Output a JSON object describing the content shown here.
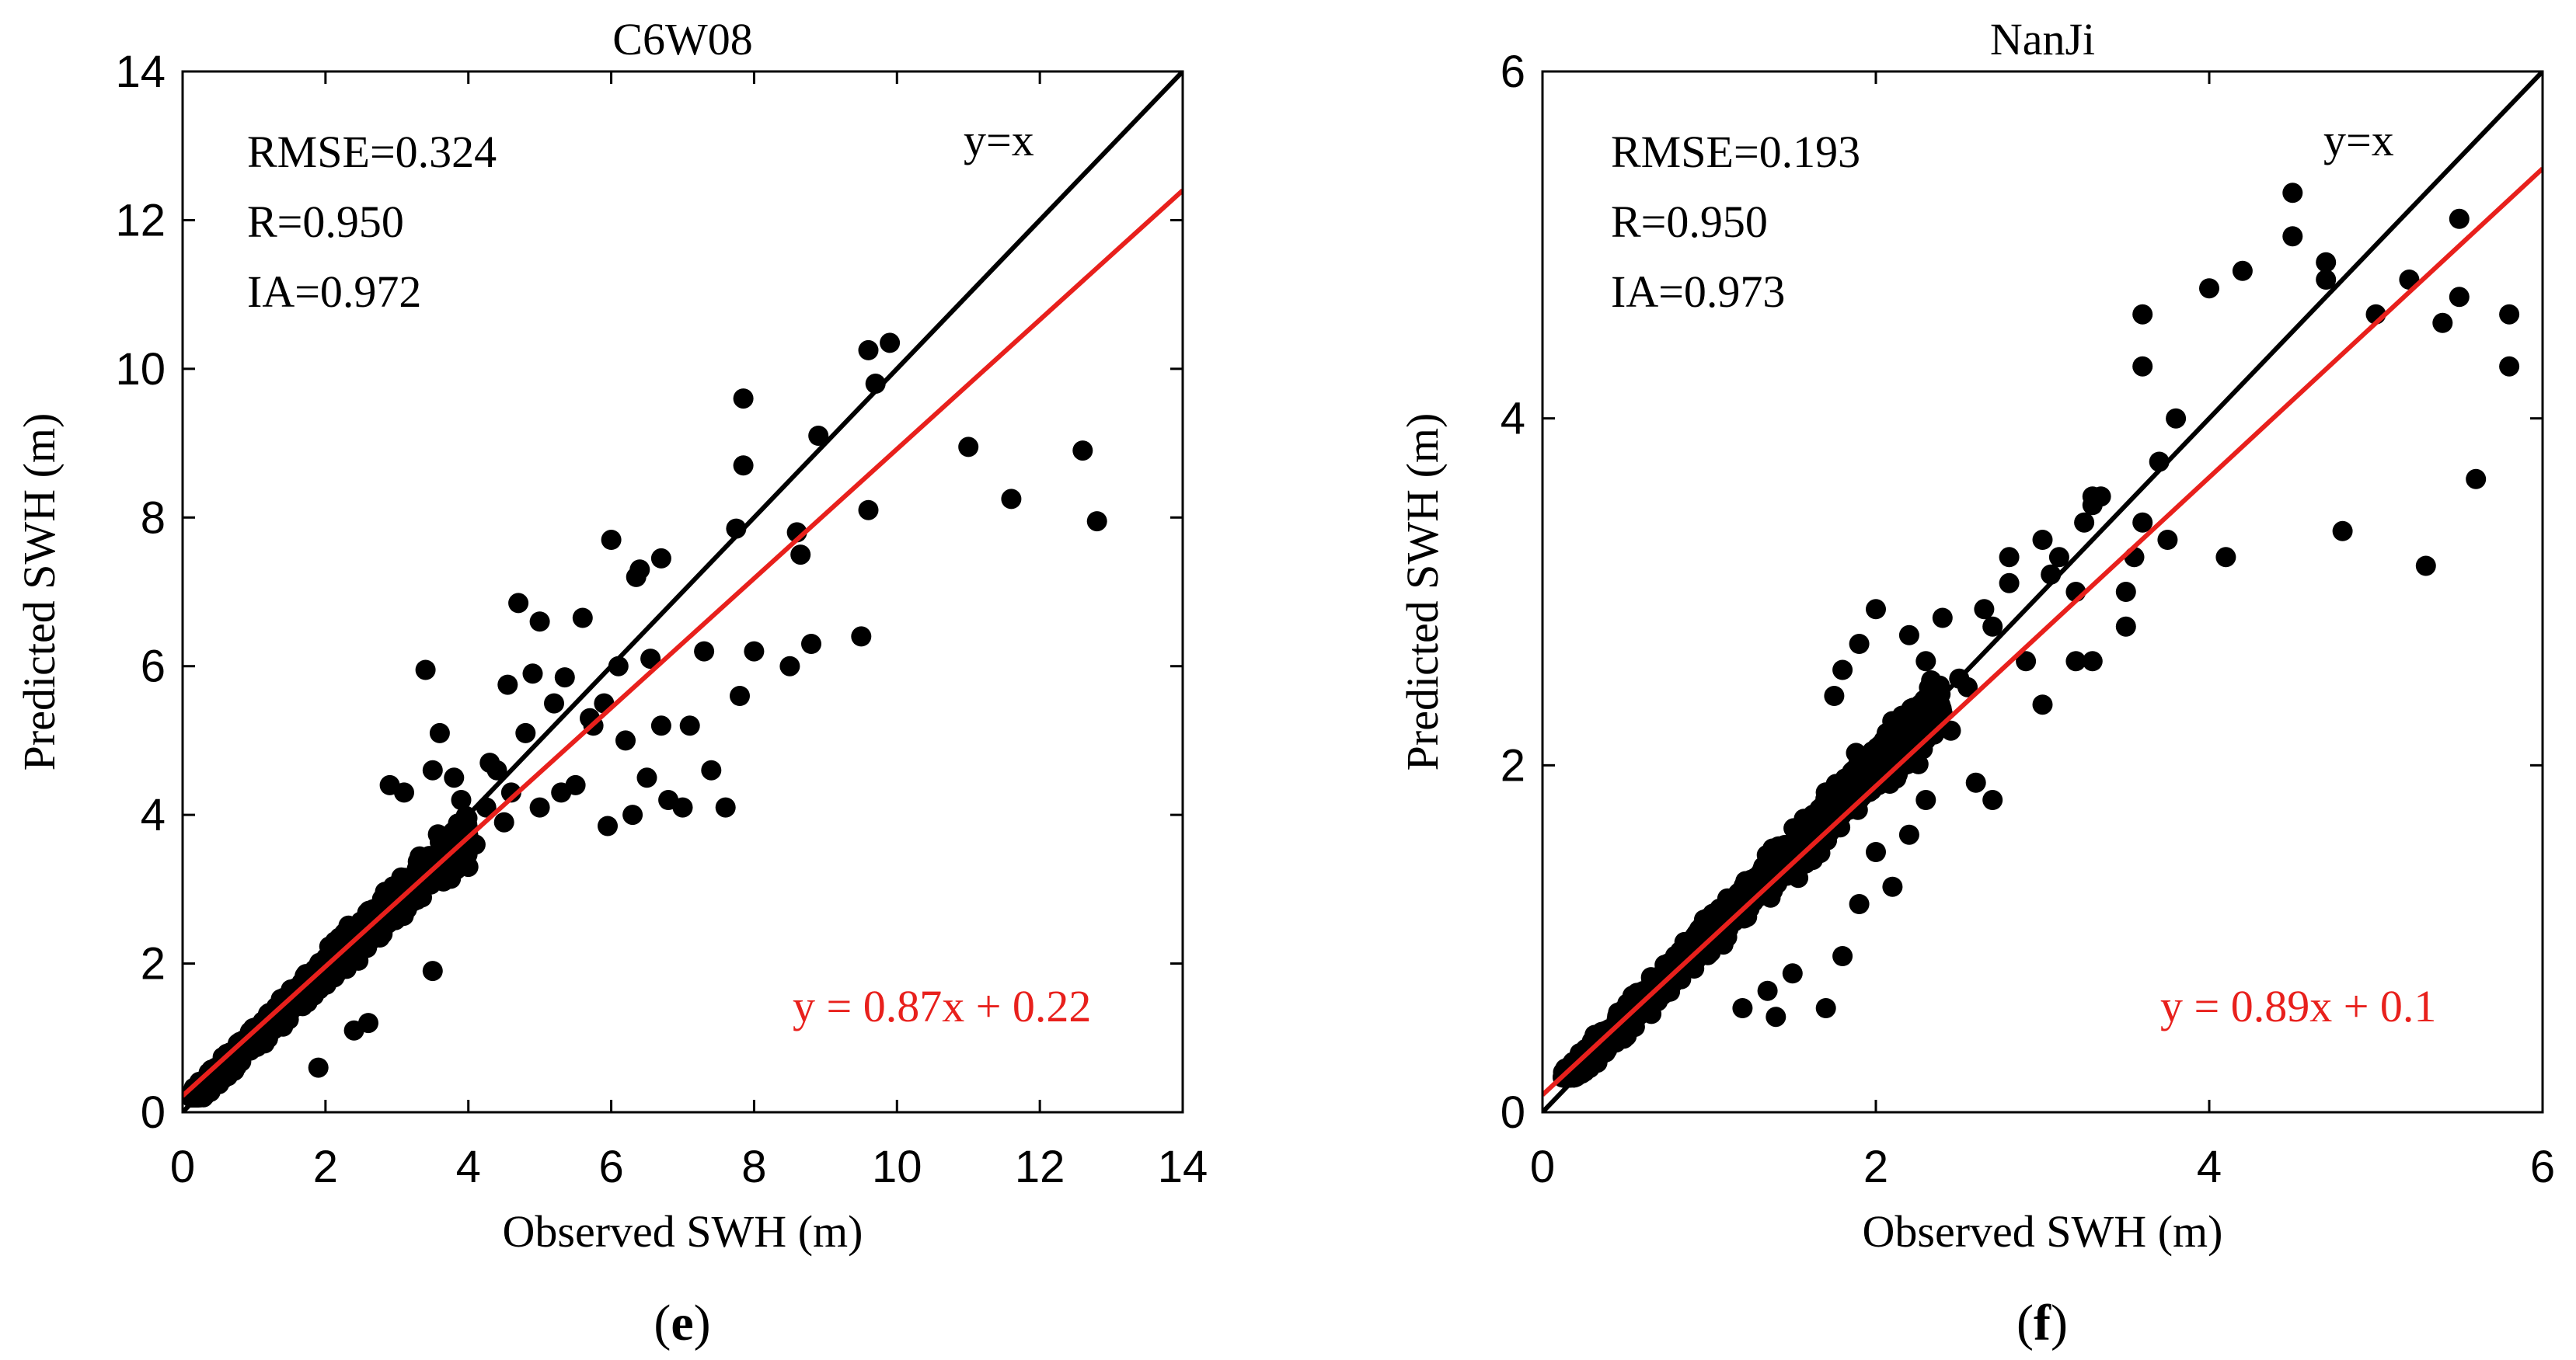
{
  "chart_data": [
    {
      "panel": "(e)",
      "type": "scatter",
      "title": "C6W08",
      "xlabel": "Observed SWH (m)",
      "ylabel": "Predicted SWH (m)",
      "xlim": [
        0,
        14
      ],
      "ylim": [
        0,
        14
      ],
      "xticks": [
        0,
        2,
        4,
        6,
        8,
        10,
        12,
        14
      ],
      "yticks": [
        0,
        2,
        4,
        6,
        8,
        10,
        12,
        14
      ],
      "stats": [
        "RMSE=0.324",
        "R=0.950",
        "IA=0.972"
      ],
      "identity_label": "y=x",
      "fit_label": "y = 0.87x + 0.22",
      "identity_line": {
        "slope": 1,
        "intercept": 0
      },
      "fit_line": {
        "slope": 0.87,
        "intercept": 0.22
      },
      "colors": {
        "points": "#000000",
        "identity": "#000000",
        "fit": "#e8201c",
        "fit_text": "#e8201c"
      },
      "cloud": {
        "x_max": 4.0,
        "slope": 0.93,
        "intercept": 0.05,
        "spread": 0.38,
        "count": 1100
      },
      "points": [
        [
          4.7,
          6.85
        ],
        [
          4.9,
          5.9
        ],
        [
          5.0,
          6.6
        ],
        [
          5.2,
          5.5
        ],
        [
          5.35,
          5.85
        ],
        [
          4.8,
          5.1
        ],
        [
          5.0,
          4.1
        ],
        [
          5.3,
          4.3
        ],
        [
          5.5,
          4.4
        ],
        [
          5.6,
          6.65
        ],
        [
          5.7,
          5.3
        ],
        [
          5.75,
          5.2
        ],
        [
          5.9,
          5.5
        ],
        [
          5.95,
          3.85
        ],
        [
          6.0,
          7.7
        ],
        [
          6.1,
          6.0
        ],
        [
          6.2,
          5.0
        ],
        [
          6.3,
          4.0
        ],
        [
          6.35,
          7.2
        ],
        [
          6.4,
          7.3
        ],
        [
          6.5,
          4.5
        ],
        [
          6.55,
          6.1
        ],
        [
          6.7,
          5.2
        ],
        [
          6.7,
          7.45
        ],
        [
          6.8,
          4.2
        ],
        [
          7.0,
          4.1
        ],
        [
          7.1,
          5.2
        ],
        [
          7.3,
          6.2
        ],
        [
          7.4,
          4.6
        ],
        [
          7.6,
          4.1
        ],
        [
          7.75,
          7.85
        ],
        [
          7.8,
          5.6
        ],
        [
          7.85,
          9.6
        ],
        [
          7.85,
          8.7
        ],
        [
          8.0,
          6.2
        ],
        [
          8.5,
          6.0
        ],
        [
          8.6,
          7.8
        ],
        [
          8.65,
          7.5
        ],
        [
          8.8,
          6.3
        ],
        [
          8.9,
          9.1
        ],
        [
          9.5,
          6.4
        ],
        [
          9.6,
          8.1
        ],
        [
          9.6,
          10.25
        ],
        [
          9.7,
          9.8
        ],
        [
          9.9,
          10.35
        ],
        [
          11.0,
          8.95
        ],
        [
          11.6,
          8.25
        ],
        [
          12.6,
          8.9
        ],
        [
          12.8,
          7.95
        ],
        [
          4.4,
          4.6
        ],
        [
          4.5,
          3.9
        ],
        [
          4.6,
          4.3
        ],
        [
          4.55,
          5.75
        ],
        [
          4.3,
          4.7
        ],
        [
          4.25,
          4.1
        ],
        [
          3.8,
          4.5
        ],
        [
          3.6,
          5.1
        ],
        [
          3.4,
          5.95
        ],
        [
          3.5,
          4.6
        ],
        [
          3.7,
          3.5
        ],
        [
          3.9,
          4.2
        ],
        [
          4.1,
          3.6
        ],
        [
          4.0,
          3.3
        ],
        [
          3.5,
          1.9
        ],
        [
          3.3,
          3.1
        ],
        [
          2.9,
          4.4
        ],
        [
          3.1,
          4.3
        ],
        [
          2.6,
          1.2
        ],
        [
          2.4,
          1.1
        ],
        [
          1.9,
          0.6
        ]
      ]
    },
    {
      "panel": "(f)",
      "type": "scatter",
      "title": "NanJi",
      "xlabel": "Observed SWH (m)",
      "ylabel": "Predicted SWH (m)",
      "xlim": [
        0,
        6
      ],
      "ylim": [
        0,
        6
      ],
      "xticks": [
        0,
        2,
        4,
        6
      ],
      "yticks": [
        0,
        2,
        4,
        6
      ],
      "stats": [
        "RMSE=0.193",
        "R=0.950",
        "IA=0.973"
      ],
      "identity_label": "y=x",
      "fit_label": "y = 0.89x + 0.1",
      "identity_line": {
        "slope": 1,
        "intercept": 0
      },
      "fit_line": {
        "slope": 0.89,
        "intercept": 0.1
      },
      "colors": {
        "points": "#000000",
        "identity": "#000000",
        "fit": "#e8201c",
        "fit_text": "#e8201c"
      },
      "cloud": {
        "x_max": 2.4,
        "slope": 0.97,
        "intercept": 0.05,
        "spread": 0.2,
        "count": 1100
      },
      "points": [
        [
          4.5,
          5.3
        ],
        [
          4.5,
          5.05
        ],
        [
          4.7,
          4.9
        ],
        [
          4.7,
          4.8
        ],
        [
          4.2,
          4.85
        ],
        [
          4.0,
          4.75
        ],
        [
          3.6,
          4.6
        ],
        [
          3.6,
          4.3
        ],
        [
          3.8,
          4.0
        ],
        [
          3.7,
          3.75
        ],
        [
          3.75,
          3.3
        ],
        [
          3.6,
          3.4
        ],
        [
          3.55,
          3.2
        ],
        [
          3.5,
          3.0
        ],
        [
          3.5,
          2.8
        ],
        [
          3.3,
          3.5
        ],
        [
          3.3,
          3.55
        ],
        [
          3.35,
          3.55
        ],
        [
          3.25,
          3.4
        ],
        [
          3.2,
          3.0
        ],
        [
          3.1,
          3.2
        ],
        [
          3.0,
          3.3
        ],
        [
          3.05,
          3.1
        ],
        [
          2.8,
          3.2
        ],
        [
          2.8,
          3.05
        ],
        [
          2.7,
          2.8
        ],
        [
          2.65,
          2.9
        ],
        [
          2.9,
          2.6
        ],
        [
          3.0,
          2.35
        ],
        [
          3.3,
          2.6
        ],
        [
          3.2,
          2.6
        ],
        [
          2.7,
          1.8
        ],
        [
          4.1,
          3.2
        ],
        [
          4.8,
          3.35
        ],
        [
          5.0,
          4.6
        ],
        [
          5.2,
          4.8
        ],
        [
          5.3,
          3.15
        ],
        [
          5.4,
          4.55
        ],
        [
          5.5,
          5.15
        ],
        [
          5.5,
          4.7
        ],
        [
          5.6,
          3.65
        ],
        [
          5.8,
          4.6
        ],
        [
          5.8,
          4.3
        ],
        [
          2.4,
          2.85
        ],
        [
          2.5,
          2.5
        ],
        [
          2.55,
          2.45
        ],
        [
          2.2,
          2.75
        ],
        [
          2.3,
          2.6
        ],
        [
          2.0,
          2.9
        ],
        [
          1.9,
          2.7
        ],
        [
          1.8,
          2.55
        ],
        [
          1.75,
          2.4
        ],
        [
          1.9,
          1.2
        ],
        [
          1.7,
          0.6
        ],
        [
          2.0,
          1.5
        ],
        [
          2.1,
          1.3
        ],
        [
          2.2,
          1.6
        ],
        [
          1.4,
          0.55
        ],
        [
          1.35,
          0.7
        ],
        [
          2.6,
          1.9
        ],
        [
          2.3,
          1.8
        ],
        [
          2.4,
          2.3
        ],
        [
          2.45,
          2.2
        ],
        [
          1.8,
          0.9
        ],
        [
          1.5,
          0.8
        ],
        [
          1.2,
          0.6
        ]
      ]
    }
  ],
  "panel_labels": {
    "left": "(e)",
    "right": "(f)"
  }
}
